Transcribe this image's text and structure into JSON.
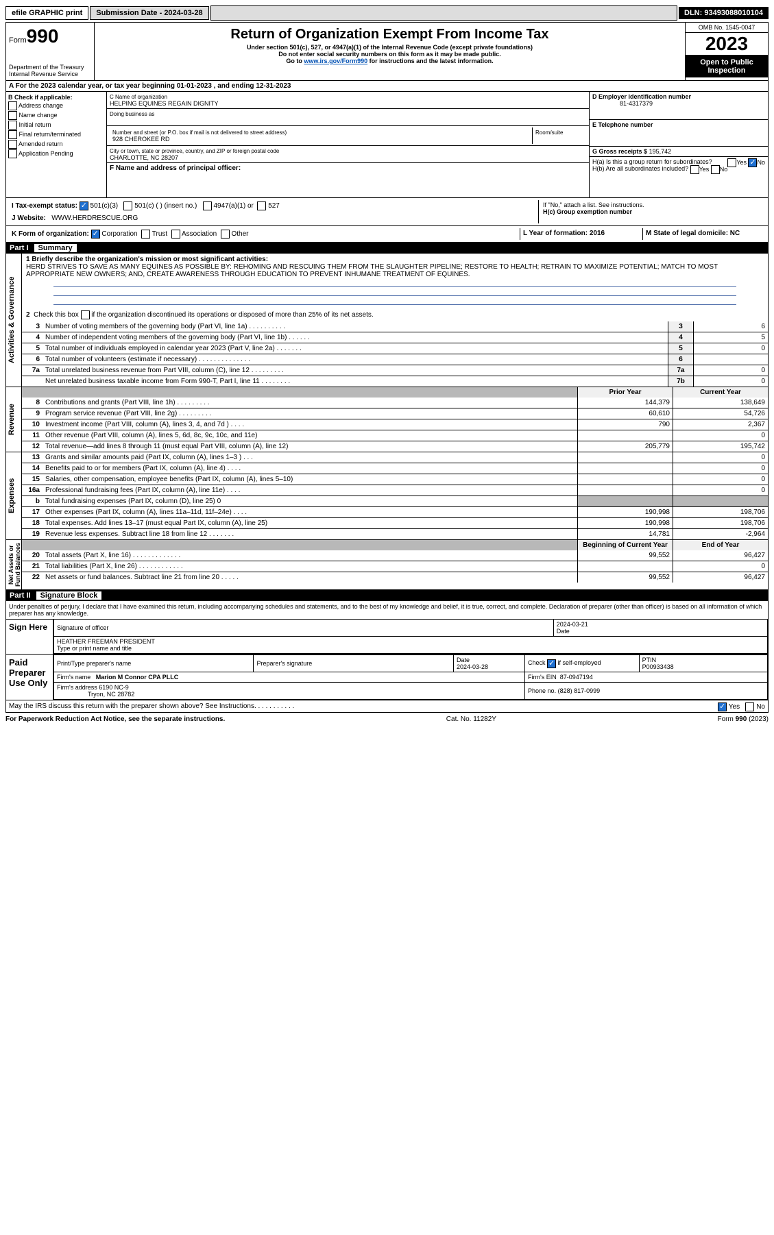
{
  "topbar": {
    "efile": "efile GRAPHIC print",
    "submission": "Submission Date - 2024-03-28",
    "dln": "DLN: 93493088010104"
  },
  "header": {
    "form_prefix": "Form",
    "form_num": "990",
    "dept": "Department of the Treasury",
    "irs": "Internal Revenue Service",
    "title": "Return of Organization Exempt From Income Tax",
    "sub1": "Under section 501(c), 527, or 4947(a)(1) of the Internal Revenue Code (except private foundations)",
    "sub2": "Do not enter social security numbers on this form as it may be made public.",
    "sub3_pre": "Go to ",
    "sub3_link": "www.irs.gov/Form990",
    "sub3_post": " for instructions and the latest information.",
    "omb": "OMB No. 1545-0047",
    "year": "2023",
    "inspect": "Open to Public Inspection"
  },
  "row_a": "A For the 2023 calendar year, or tax year beginning 01-01-2023   , and ending 12-31-2023",
  "col_b": {
    "title": "B Check if applicable:",
    "items": [
      "Address change",
      "Name change",
      "Initial return",
      "Final return/terminated",
      "Amended return",
      "Application Pending"
    ]
  },
  "org": {
    "name_label": "C Name of organization",
    "name": "HELPING EQUINES REGAIN DIGNITY",
    "dba_label": "Doing business as",
    "addr_label": "Number and street (or P.O. box if mail is not delivered to street address)",
    "room_label": "Room/suite",
    "addr": "928 CHEROKEE RD",
    "city_label": "City or town, state or province, country, and ZIP or foreign postal code",
    "city": "CHARLOTTE, NC  28207",
    "f_label": "F Name and address of principal officer:",
    "ein_label": "D Employer identification number",
    "ein": "81-4317379",
    "tel_label": "E Telephone number",
    "gross_label": "G Gross receipts $",
    "gross": "195,742"
  },
  "h": {
    "a": "H(a)  Is this a group return for subordinates?",
    "b": "H(b)  Are all subordinates included?",
    "b_note": "If \"No,\" attach a list. See instructions.",
    "c": "H(c)  Group exemption number"
  },
  "row_i": {
    "label": "I  Tax-exempt status:",
    "opt1": "501(c)(3)",
    "opt2": "501(c) (  ) (insert no.)",
    "opt3": "4947(a)(1) or",
    "opt4": "527"
  },
  "row_j": {
    "label": "J  Website:",
    "value": "WWW.HERDRESCUE.ORG"
  },
  "row_k": {
    "label": "K Form of organization:",
    "opts": [
      "Corporation",
      "Trust",
      "Association",
      "Other"
    ],
    "l": "L Year of formation: 2016",
    "m": "M State of legal domicile: NC"
  },
  "part1": {
    "tag": "Part I",
    "title": "Summary"
  },
  "summary": {
    "l1_label": "1  Briefly describe the organization's mission or most significant activities:",
    "l1_text": "HERD STRIVES TO SAVE AS MANY EQUINES AS POSSIBLE BY: REHOMING AND RESCUING THEM FROM THE SLAUGHTER PIPELINE; RESTORE TO HEALTH; RETRAIN TO MAXIMIZE POTENTIAL; MATCH TO MOST APPROPRIATE NEW OWNERS; AND, CREATE AWARENESS THROUGH EDUCATION TO PREVENT INHUMANE TREATMENT OF EQUINES.",
    "l2": "Check this box       if the organization discontinued its operations or disposed of more than 25% of its net assets.",
    "rows_box": [
      {
        "n": "3",
        "t": "Number of voting members of the governing body (Part VI, line 1a)  .   .   .   .   .   .   .   .   .   .",
        "b": "3",
        "v": "6"
      },
      {
        "n": "4",
        "t": "Number of independent voting members of the governing body (Part VI, line 1b)  .   .   .   .   .   .",
        "b": "4",
        "v": "5"
      },
      {
        "n": "5",
        "t": "Total number of individuals employed in calendar year 2023 (Part V, line 2a)  .   .   .   .   .   .   .",
        "b": "5",
        "v": "0"
      },
      {
        "n": "6",
        "t": "Total number of volunteers (estimate if necessary)  .   .   .   .   .   .   .   .   .   .   .   .   .   .",
        "b": "6",
        "v": ""
      },
      {
        "n": "7a",
        "t": "Total unrelated business revenue from Part VIII, column (C), line 12  .   .   .   .   .   .   .   .   .",
        "b": "7a",
        "v": "0"
      },
      {
        "n": "",
        "t": "Net unrelated business taxable income from Form 990-T, Part I, line 11  .   .   .   .   .   .   .   .",
        "b": "7b",
        "v": "0"
      }
    ]
  },
  "revenue": {
    "head_prior": "Prior Year",
    "head_curr": "Current Year",
    "rows": [
      {
        "n": "8",
        "t": "Contributions and grants (Part VIII, line 1h)  .   .   .   .   .   .   .   .   .",
        "p": "144,379",
        "c": "138,649"
      },
      {
        "n": "9",
        "t": "Program service revenue (Part VIII, line 2g)  .   .   .   .   .   .   .   .   .",
        "p": "60,610",
        "c": "54,726"
      },
      {
        "n": "10",
        "t": "Investment income (Part VIII, column (A), lines 3, 4, and 7d )   .   .   .   .",
        "p": "790",
        "c": "2,367"
      },
      {
        "n": "11",
        "t": "Other revenue (Part VIII, column (A), lines 5, 6d, 8c, 9c, 10c, and 11e)",
        "p": "",
        "c": "0"
      },
      {
        "n": "12",
        "t": "Total revenue—add lines 8 through 11 (must equal Part VIII, column (A), line 12)",
        "p": "205,779",
        "c": "195,742"
      }
    ]
  },
  "expenses": {
    "rows": [
      {
        "n": "13",
        "t": "Grants and similar amounts paid (Part IX, column (A), lines 1–3 )  .   .   .",
        "p": "",
        "c": "0"
      },
      {
        "n": "14",
        "t": "Benefits paid to or for members (Part IX, column (A), line 4)  .   .   .   .",
        "p": "",
        "c": "0"
      },
      {
        "n": "15",
        "t": "Salaries, other compensation, employee benefits (Part IX, column (A), lines 5–10)",
        "p": "",
        "c": "0"
      },
      {
        "n": "16a",
        "t": "Professional fundraising fees (Part IX, column (A), line 11e)  .   .   .   .",
        "p": "",
        "c": "0"
      },
      {
        "n": "b",
        "t": "Total fundraising expenses (Part IX, column (D), line 25) 0",
        "p": "shaded",
        "c": "shaded"
      },
      {
        "n": "17",
        "t": "Other expenses (Part IX, column (A), lines 11a–11d, 11f–24e)  .   .   .   .",
        "p": "190,998",
        "c": "198,706"
      },
      {
        "n": "18",
        "t": "Total expenses. Add lines 13–17 (must equal Part IX, column (A), line 25)",
        "p": "190,998",
        "c": "198,706"
      },
      {
        "n": "19",
        "t": "Revenue less expenses. Subtract line 18 from line 12  .   .   .   .   .   .   .",
        "p": "14,781",
        "c": "-2,964"
      }
    ]
  },
  "netassets": {
    "head_beg": "Beginning of Current Year",
    "head_end": "End of Year",
    "rows": [
      {
        "n": "20",
        "t": "Total assets (Part X, line 16)  .   .   .   .   .   .   .   .   .   .   .   .   .",
        "p": "99,552",
        "c": "96,427"
      },
      {
        "n": "21",
        "t": "Total liabilities (Part X, line 26)  .   .   .   .   .   .   .   .   .   .   .   .",
        "p": "",
        "c": "0"
      },
      {
        "n": "22",
        "t": "Net assets or fund balances. Subtract line 21 from line 20   .   .   .   .   .",
        "p": "99,552",
        "c": "96,427"
      }
    ]
  },
  "part2": {
    "tag": "Part II",
    "title": "Signature Block"
  },
  "perjury": "Under penalties of perjury, I declare that I have examined this return, including accompanying schedules and statements, and to the best of my knowledge and belief, it is true, correct, and complete. Declaration of preparer (other than officer) is based on all information of which preparer has any knowledge.",
  "sign": {
    "here": "Sign Here",
    "sig_label": "Signature of officer",
    "date_label": "Date",
    "date": "2024-03-21",
    "name": "HEATHER FREEMAN  PRESIDENT",
    "name_label": "Type or print name and title"
  },
  "paid": {
    "label": "Paid Preparer Use Only",
    "col1": "Print/Type preparer's name",
    "col2": "Preparer's signature",
    "col3": "Date",
    "col3v": "2024-03-28",
    "col4": "Check        if self-employed",
    "col5": "PTIN",
    "col5v": "P00933438",
    "firm_name_l": "Firm's name",
    "firm_name": "Marion M Connor CPA PLLC",
    "firm_ein_l": "Firm's EIN",
    "firm_ein": "87-0947194",
    "firm_addr_l": "Firm's address",
    "firm_addr": "6190 NC-9",
    "firm_city": "Tryon, NC  28782",
    "phone_l": "Phone no.",
    "phone": "(828) 817-0999"
  },
  "discuss": "May the IRS discuss this return with the preparer shown above? See Instructions.  .   .   .   .   .   .   .   .   .   .",
  "foot": {
    "l": "For Paperwork Reduction Act Notice, see the separate instructions.",
    "m": "Cat. No. 11282Y",
    "r": "Form 990 (2023)"
  },
  "yesno": {
    "yes": "Yes",
    "no": "No"
  }
}
